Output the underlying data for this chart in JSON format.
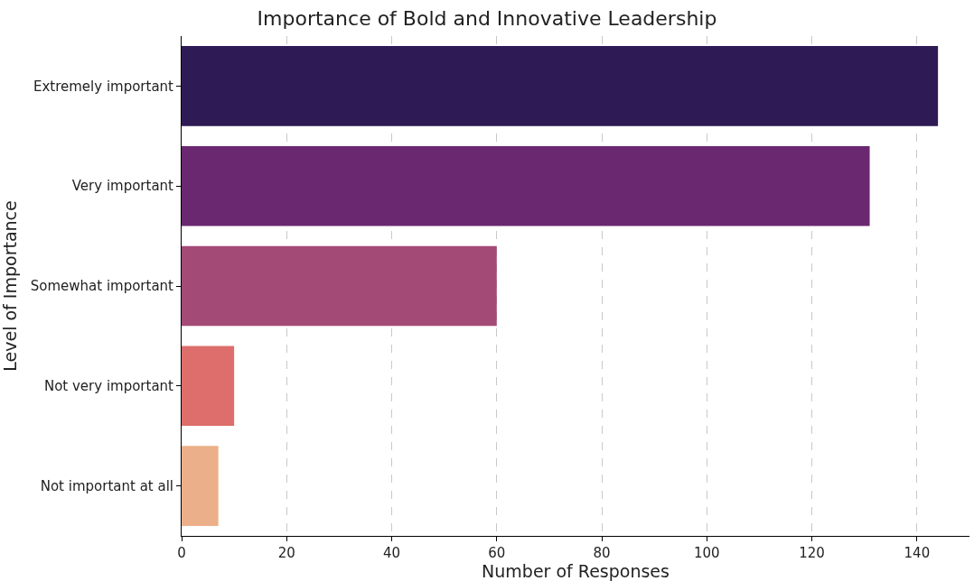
{
  "chart_data": {
    "type": "bar",
    "orientation": "horizontal",
    "title": "Importance of Bold and Innovative Leadership",
    "xlabel": "Number of Responses",
    "ylabel": "Level of Importance",
    "categories": [
      "Extremely important",
      "Very important",
      "Somewhat important",
      "Not very important",
      "Not important at all"
    ],
    "values": [
      144,
      131,
      60,
      10,
      7
    ],
    "colors": [
      "#2e1a55",
      "#6a2870",
      "#a44a77",
      "#dd6e6b",
      "#ebb089"
    ],
    "xlim": [
      0,
      150
    ],
    "xticks": [
      0,
      20,
      40,
      60,
      80,
      100,
      120,
      140
    ],
    "grid": "x"
  }
}
